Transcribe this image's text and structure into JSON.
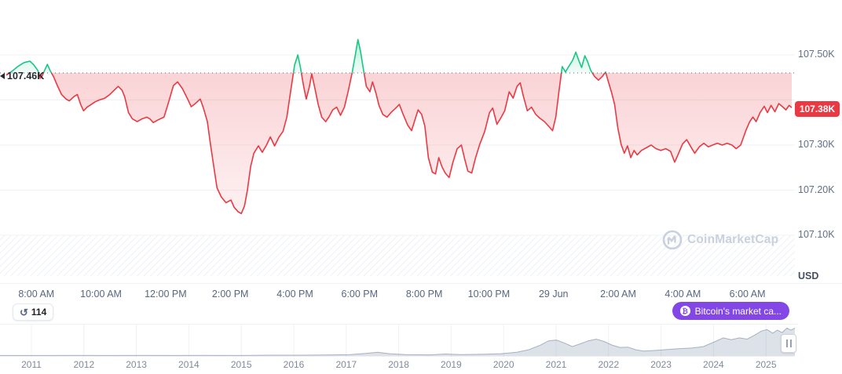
{
  "colors": {
    "red": "#ea3943",
    "green": "#16c784",
    "purple": "#8247e5",
    "axis_text": "#616e85",
    "grid": "#eff2f5",
    "watermark": "#c9d1dd",
    "baseline": "#596377"
  },
  "watermark": {
    "text": "CoinMarketCap"
  },
  "badges": {
    "history_count": "114",
    "market_cap_label": "Bitcoin's market ca...",
    "history_icon_glyph": "↺",
    "bitcoin_symbol": "₿"
  },
  "chart_data": [
    {
      "type": "line",
      "title": "Bitcoin price, 24h intraday (28-29 Jun)",
      "unit": "USD",
      "open": {
        "value": 107.46,
        "label": "107.46K"
      },
      "current": {
        "value": 107.38,
        "label": "107.38K"
      },
      "ylim": [
        107.0,
        107.62
      ],
      "x_domain": [
        0,
        24.3
      ],
      "grid": "horizontal",
      "legend": "none",
      "y_ticks": [
        {
          "value": 107.5,
          "label": "107.50K"
        },
        {
          "value": 107.4,
          "label": ""
        },
        {
          "value": 107.3,
          "label": "107.30K"
        },
        {
          "value": 107.2,
          "label": "107.20K"
        },
        {
          "value": 107.1,
          "label": "107.10K"
        }
      ],
      "x_labels": [
        {
          "t": 0.93,
          "label": "8:00 AM"
        },
        {
          "t": 2.93,
          "label": "10:00 AM"
        },
        {
          "t": 4.93,
          "label": "12:00 PM"
        },
        {
          "t": 6.93,
          "label": "2:00 PM"
        },
        {
          "t": 8.93,
          "label": "4:00 PM"
        },
        {
          "t": 10.93,
          "label": "6:00 PM"
        },
        {
          "t": 12.93,
          "label": "8:00 PM"
        },
        {
          "t": 14.93,
          "label": "10:00 PM"
        },
        {
          "t": 16.93,
          "label": "29 Jun"
        },
        {
          "t": 18.93,
          "label": "2:00 AM"
        },
        {
          "t": 20.93,
          "label": "4:00 AM"
        },
        {
          "t": 22.93,
          "label": "6:00 AM"
        }
      ],
      "points": [
        [
          0.0,
          107.455
        ],
        [
          0.2,
          107.465
        ],
        [
          0.37,
          107.475
        ],
        [
          0.55,
          107.483
        ],
        [
          0.73,
          107.486
        ],
        [
          0.85,
          107.478
        ],
        [
          0.98,
          107.465
        ],
        [
          1.05,
          107.448
        ],
        [
          1.1,
          107.452
        ],
        [
          1.2,
          107.468
        ],
        [
          1.27,
          107.479
        ],
        [
          1.35,
          107.466
        ],
        [
          1.46,
          107.452
        ],
        [
          1.58,
          107.432
        ],
        [
          1.71,
          107.412
        ],
        [
          1.85,
          107.402
        ],
        [
          1.95,
          107.398
        ],
        [
          2.1,
          107.408
        ],
        [
          2.2,
          107.412
        ],
        [
          2.3,
          107.39
        ],
        [
          2.39,
          107.376
        ],
        [
          2.5,
          107.384
        ],
        [
          2.63,
          107.39
        ],
        [
          2.75,
          107.396
        ],
        [
          2.88,
          107.4
        ],
        [
          3.05,
          107.404
        ],
        [
          3.2,
          107.412
        ],
        [
          3.46,
          107.43
        ],
        [
          3.58,
          107.422
        ],
        [
          3.66,
          107.408
        ],
        [
          3.78,
          107.372
        ],
        [
          3.9,
          107.358
        ],
        [
          4.05,
          107.352
        ],
        [
          4.2,
          107.358
        ],
        [
          4.35,
          107.362
        ],
        [
          4.44,
          107.358
        ],
        [
          4.55,
          107.35
        ],
        [
          4.7,
          107.356
        ],
        [
          4.88,
          107.362
        ],
        [
          5.0,
          107.39
        ],
        [
          5.17,
          107.432
        ],
        [
          5.3,
          107.44
        ],
        [
          5.45,
          107.425
        ],
        [
          5.61,
          107.402
        ],
        [
          5.72,
          107.385
        ],
        [
          5.85,
          107.392
        ],
        [
          6.0,
          107.402
        ],
        [
          6.1,
          107.382
        ],
        [
          6.22,
          107.352
        ],
        [
          6.32,
          107.3
        ],
        [
          6.42,
          107.252
        ],
        [
          6.52,
          107.205
        ],
        [
          6.65,
          107.185
        ],
        [
          6.8,
          107.172
        ],
        [
          6.95,
          107.178
        ],
        [
          7.05,
          107.162
        ],
        [
          7.17,
          107.152
        ],
        [
          7.27,
          107.148
        ],
        [
          7.37,
          107.165
        ],
        [
          7.46,
          107.2
        ],
        [
          7.56,
          107.252
        ],
        [
          7.66,
          107.282
        ],
        [
          7.8,
          107.298
        ],
        [
          7.92,
          107.284
        ],
        [
          8.05,
          107.3
        ],
        [
          8.17,
          107.318
        ],
        [
          8.3,
          107.298
        ],
        [
          8.44,
          107.318
        ],
        [
          8.56,
          107.33
        ],
        [
          8.68,
          107.362
        ],
        [
          8.8,
          107.42
        ],
        [
          8.92,
          107.478
        ],
        [
          9.02,
          107.5
        ],
        [
          9.1,
          107.472
        ],
        [
          9.2,
          107.43
        ],
        [
          9.28,
          107.402
        ],
        [
          9.38,
          107.43
        ],
        [
          9.45,
          107.458
        ],
        [
          9.55,
          107.425
        ],
        [
          9.65,
          107.39
        ],
        [
          9.76,
          107.362
        ],
        [
          9.88,
          107.352
        ],
        [
          9.98,
          107.362
        ],
        [
          10.1,
          107.378
        ],
        [
          10.22,
          107.384
        ],
        [
          10.34,
          107.366
        ],
        [
          10.46,
          107.384
        ],
        [
          10.58,
          107.42
        ],
        [
          10.7,
          107.46
        ],
        [
          10.8,
          107.5
        ],
        [
          10.88,
          107.534
        ],
        [
          10.96,
          107.508
        ],
        [
          11.04,
          107.472
        ],
        [
          11.14,
          107.43
        ],
        [
          11.25,
          107.418
        ],
        [
          11.33,
          107.44
        ],
        [
          11.44,
          107.414
        ],
        [
          11.53,
          107.388
        ],
        [
          11.65,
          107.368
        ],
        [
          11.78,
          107.362
        ],
        [
          11.9,
          107.372
        ],
        [
          12.05,
          107.382
        ],
        [
          12.16,
          107.39
        ],
        [
          12.28,
          107.368
        ],
        [
          12.42,
          107.344
        ],
        [
          12.54,
          107.332
        ],
        [
          12.66,
          107.36
        ],
        [
          12.74,
          107.378
        ],
        [
          12.85,
          107.368
        ],
        [
          12.95,
          107.342
        ],
        [
          13.06,
          107.272
        ],
        [
          13.18,
          107.24
        ],
        [
          13.28,
          107.236
        ],
        [
          13.38,
          107.272
        ],
        [
          13.48,
          107.252
        ],
        [
          13.58,
          107.238
        ],
        [
          13.7,
          107.228
        ],
        [
          13.82,
          107.262
        ],
        [
          13.95,
          107.292
        ],
        [
          14.08,
          107.3
        ],
        [
          14.18,
          107.27
        ],
        [
          14.28,
          107.242
        ],
        [
          14.4,
          107.238
        ],
        [
          14.52,
          107.272
        ],
        [
          14.65,
          107.302
        ],
        [
          14.8,
          107.33
        ],
        [
          14.95,
          107.372
        ],
        [
          15.05,
          107.382
        ],
        [
          15.18,
          107.346
        ],
        [
          15.3,
          107.36
        ],
        [
          15.42,
          107.376
        ],
        [
          15.56,
          107.418
        ],
        [
          15.68,
          107.404
        ],
        [
          15.8,
          107.43
        ],
        [
          15.9,
          107.438
        ],
        [
          16.0,
          107.408
        ],
        [
          16.12,
          107.376
        ],
        [
          16.25,
          107.384
        ],
        [
          16.38,
          107.368
        ],
        [
          16.5,
          107.36
        ],
        [
          16.65,
          107.352
        ],
        [
          16.8,
          107.34
        ],
        [
          16.9,
          107.332
        ],
        [
          17.0,
          107.362
        ],
        [
          17.1,
          107.42
        ],
        [
          17.2,
          107.474
        ],
        [
          17.3,
          107.462
        ],
        [
          17.4,
          107.474
        ],
        [
          17.52,
          107.488
        ],
        [
          17.62,
          107.506
        ],
        [
          17.72,
          107.486
        ],
        [
          17.8,
          107.472
        ],
        [
          17.9,
          107.498
        ],
        [
          17.98,
          107.486
        ],
        [
          18.08,
          107.466
        ],
        [
          18.2,
          107.452
        ],
        [
          18.32,
          107.444
        ],
        [
          18.44,
          107.452
        ],
        [
          18.54,
          107.462
        ],
        [
          18.62,
          107.442
        ],
        [
          18.72,
          107.418
        ],
        [
          18.82,
          107.39
        ],
        [
          18.92,
          107.338
        ],
        [
          19.02,
          107.302
        ],
        [
          19.12,
          107.282
        ],
        [
          19.22,
          107.298
        ],
        [
          19.32,
          107.272
        ],
        [
          19.42,
          107.288
        ],
        [
          19.52,
          107.278
        ],
        [
          19.65,
          107.288
        ],
        [
          19.8,
          107.294
        ],
        [
          19.95,
          107.3
        ],
        [
          20.1,
          107.292
        ],
        [
          20.25,
          107.288
        ],
        [
          20.4,
          107.292
        ],
        [
          20.55,
          107.286
        ],
        [
          20.68,
          107.262
        ],
        [
          20.8,
          107.282
        ],
        [
          20.92,
          107.302
        ],
        [
          21.05,
          107.312
        ],
        [
          21.18,
          107.296
        ],
        [
          21.3,
          107.282
        ],
        [
          21.44,
          107.296
        ],
        [
          21.58,
          107.304
        ],
        [
          21.72,
          107.296
        ],
        [
          21.85,
          107.3
        ],
        [
          22.0,
          107.304
        ],
        [
          22.15,
          107.3
        ],
        [
          22.3,
          107.304
        ],
        [
          22.45,
          107.3
        ],
        [
          22.58,
          107.292
        ],
        [
          22.72,
          107.3
        ],
        [
          22.88,
          107.332
        ],
        [
          23.0,
          107.352
        ],
        [
          23.1,
          107.362
        ],
        [
          23.2,
          107.352
        ],
        [
          23.32,
          107.372
        ],
        [
          23.45,
          107.386
        ],
        [
          23.55,
          107.372
        ],
        [
          23.66,
          107.388
        ],
        [
          23.78,
          107.374
        ],
        [
          23.9,
          107.392
        ],
        [
          24.0,
          107.386
        ],
        [
          24.12,
          107.378
        ],
        [
          24.22,
          107.388
        ],
        [
          24.3,
          107.383
        ]
      ]
    },
    {
      "type": "area",
      "title": "All-time price navigator",
      "x_labels": [
        "2011",
        "2012",
        "2013",
        "2014",
        "2015",
        "2016",
        "2017",
        "2018",
        "2019",
        "2020",
        "2021",
        "2022",
        "2023",
        "2024",
        "2025"
      ],
      "points": [
        [
          0.0,
          0.03
        ],
        [
          0.06,
          0.03
        ],
        [
          0.1,
          0.035
        ],
        [
          0.14,
          0.03
        ],
        [
          0.18,
          0.035
        ],
        [
          0.22,
          0.03
        ],
        [
          0.26,
          0.035
        ],
        [
          0.3,
          0.03
        ],
        [
          0.34,
          0.04
        ],
        [
          0.38,
          0.04
        ],
        [
          0.42,
          0.05
        ],
        [
          0.44,
          0.06
        ],
        [
          0.46,
          0.1
        ],
        [
          0.475,
          0.14
        ],
        [
          0.49,
          0.09
        ],
        [
          0.51,
          0.06
        ],
        [
          0.54,
          0.05
        ],
        [
          0.56,
          0.08
        ],
        [
          0.58,
          0.06
        ],
        [
          0.61,
          0.07
        ],
        [
          0.63,
          0.09
        ],
        [
          0.65,
          0.14
        ],
        [
          0.665,
          0.22
        ],
        [
          0.68,
          0.38
        ],
        [
          0.69,
          0.52
        ],
        [
          0.7,
          0.55
        ],
        [
          0.71,
          0.45
        ],
        [
          0.72,
          0.33
        ],
        [
          0.73,
          0.42
        ],
        [
          0.74,
          0.52
        ],
        [
          0.75,
          0.58
        ],
        [
          0.76,
          0.5
        ],
        [
          0.77,
          0.38
        ],
        [
          0.78,
          0.3
        ],
        [
          0.79,
          0.31
        ],
        [
          0.8,
          0.22
        ],
        [
          0.81,
          0.18
        ],
        [
          0.825,
          0.2
        ],
        [
          0.84,
          0.23
        ],
        [
          0.855,
          0.26
        ],
        [
          0.87,
          0.28
        ],
        [
          0.885,
          0.33
        ],
        [
          0.9,
          0.5
        ],
        [
          0.91,
          0.62
        ],
        [
          0.92,
          0.56
        ],
        [
          0.93,
          0.62
        ],
        [
          0.94,
          0.58
        ],
        [
          0.95,
          0.72
        ],
        [
          0.958,
          0.85
        ],
        [
          0.965,
          0.9
        ],
        [
          0.972,
          0.78
        ],
        [
          0.978,
          0.88
        ],
        [
          0.984,
          0.8
        ],
        [
          0.99,
          0.95
        ],
        [
          0.995,
          0.88
        ],
        [
          1.0,
          0.95
        ]
      ]
    }
  ]
}
